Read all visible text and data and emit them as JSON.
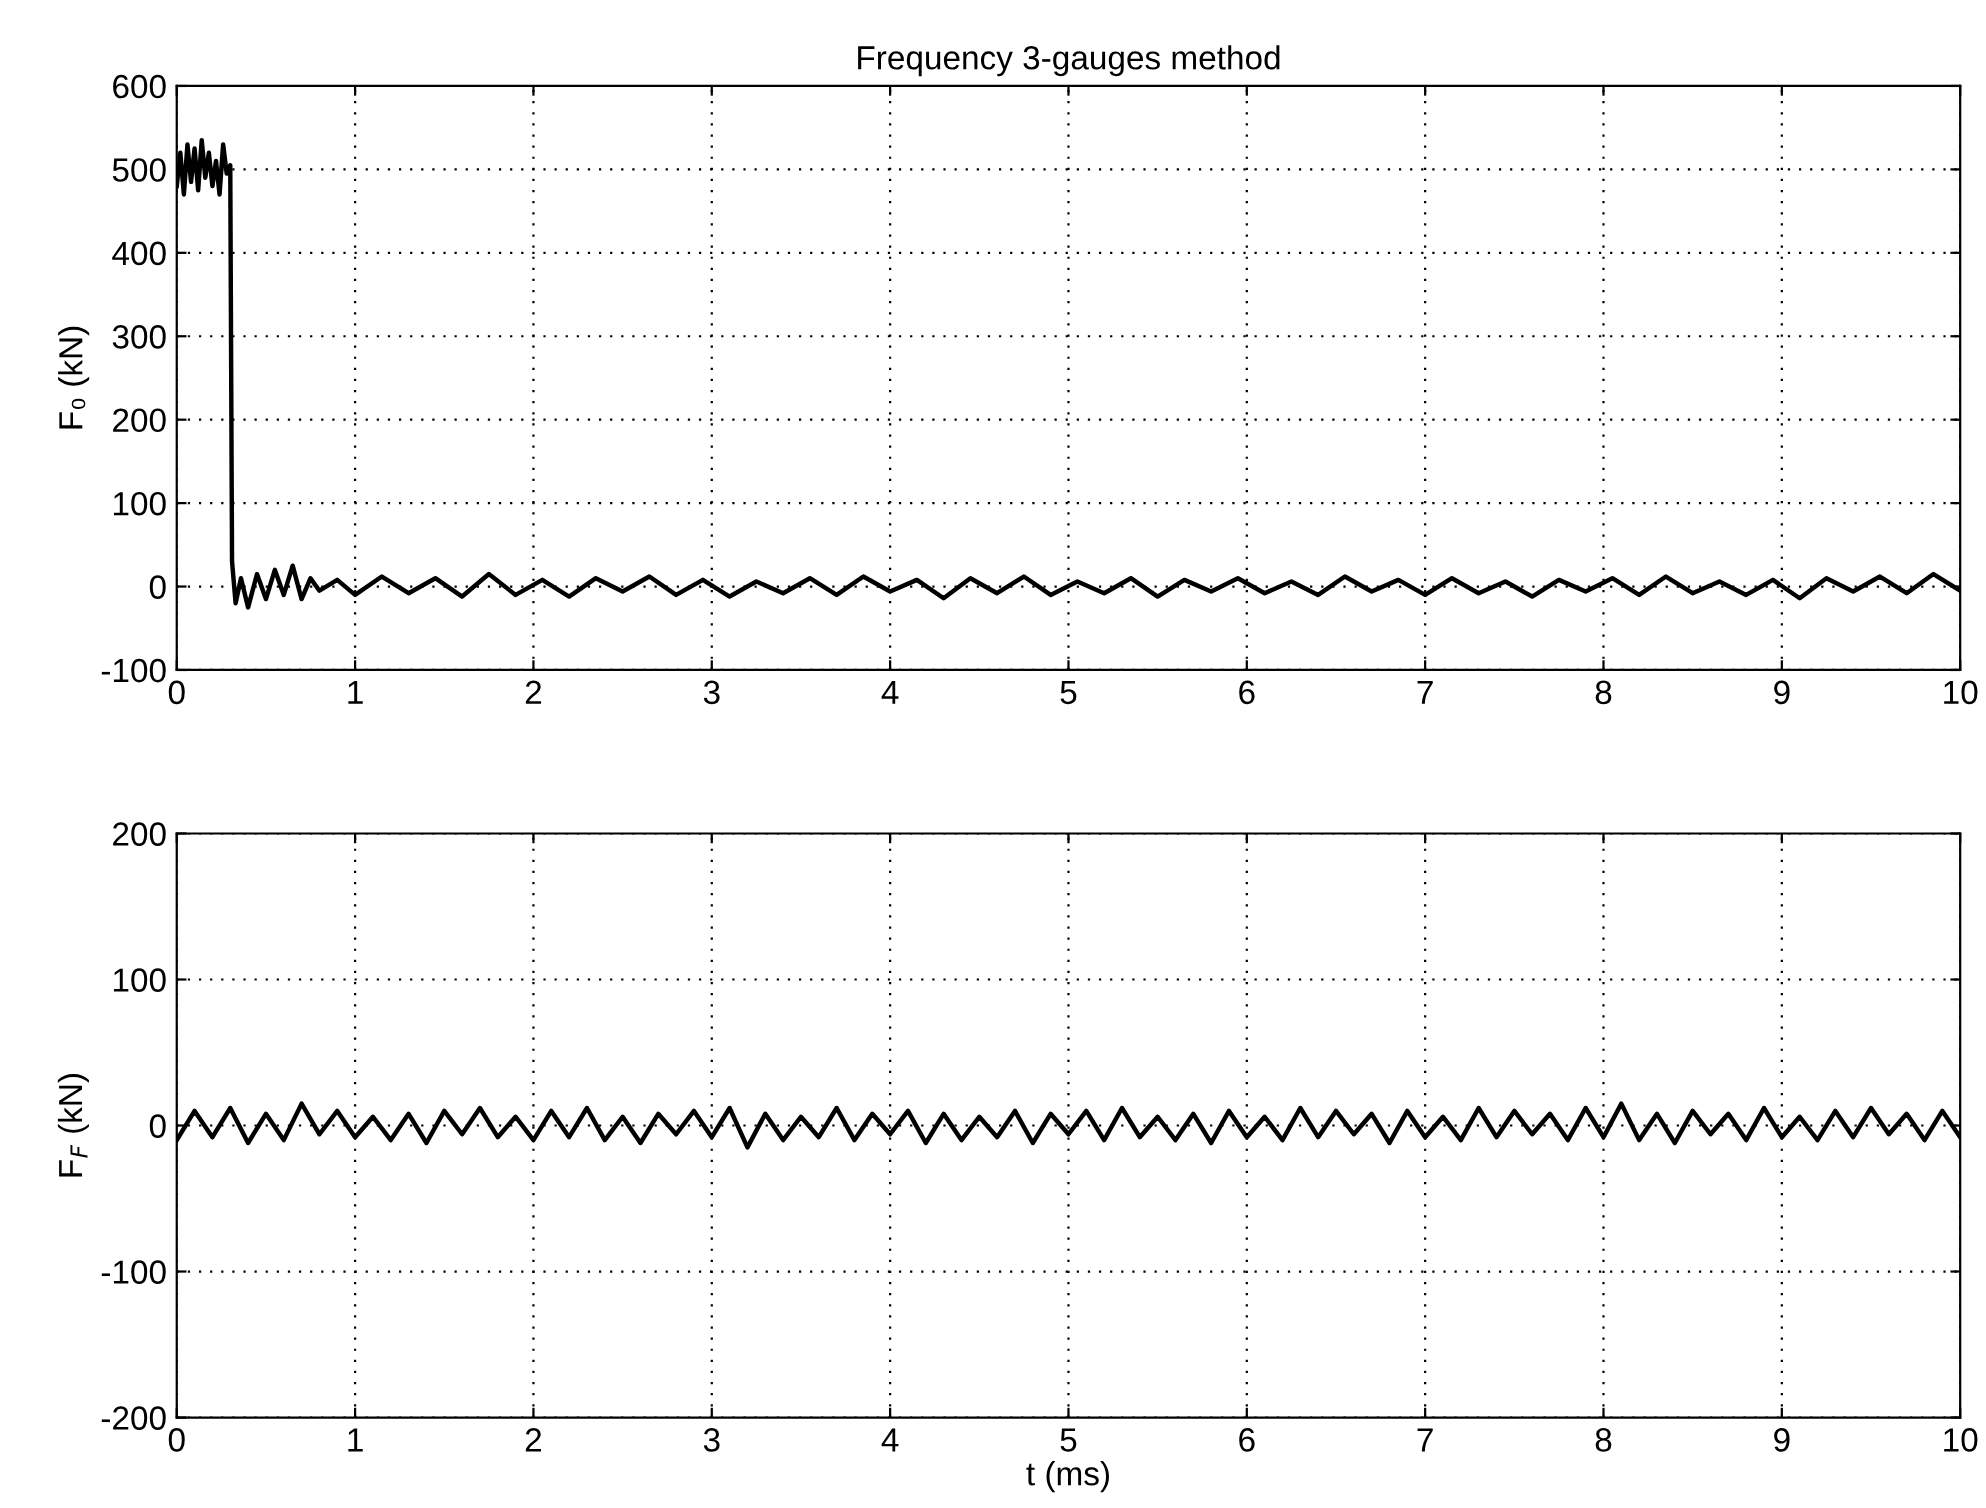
{
  "chart_data": [
    {
      "type": "line",
      "title": "Frequency 3-gauges method",
      "ylabel": "F₀ (kN)",
      "xlim": [
        0,
        10
      ],
      "ylim": [
        -100,
        600
      ],
      "xticks": [
        0,
        1,
        2,
        3,
        4,
        5,
        6,
        7,
        8,
        9,
        10
      ],
      "yticks": [
        -100,
        0,
        100,
        200,
        300,
        400,
        500,
        600
      ],
      "grid": true,
      "line_style": "solid",
      "series": [
        {
          "color": "#000000",
          "x": [
            0,
            0.02,
            0.04,
            0.06,
            0.08,
            0.1,
            0.12,
            0.14,
            0.16,
            0.18,
            0.2,
            0.22,
            0.24,
            0.26,
            0.28,
            0.3,
            0.31,
            0.33,
            0.36,
            0.4,
            0.45,
            0.5,
            0.55,
            0.6,
            0.65,
            0.7,
            0.75,
            0.8,
            0.9,
            1.0,
            1.15,
            1.3,
            1.45,
            1.6,
            1.75,
            1.9,
            2.05,
            2.2,
            2.35,
            2.5,
            2.65,
            2.8,
            2.95,
            3.1,
            3.25,
            3.4,
            3.55,
            3.7,
            3.85,
            4.0,
            4.15,
            4.3,
            4.45,
            4.6,
            4.75,
            4.9,
            5.05,
            5.2,
            5.35,
            5.5,
            5.65,
            5.8,
            5.95,
            6.1,
            6.25,
            6.4,
            6.55,
            6.7,
            6.85,
            7.0,
            7.15,
            7.3,
            7.45,
            7.6,
            7.75,
            7.9,
            8.05,
            8.2,
            8.35,
            8.5,
            8.65,
            8.8,
            8.95,
            9.1,
            9.25,
            9.4,
            9.55,
            9.7,
            9.85,
            10.0
          ],
          "values": [
            480,
            520,
            470,
            530,
            485,
            525,
            475,
            535,
            490,
            520,
            480,
            510,
            470,
            530,
            495,
            505,
            30,
            -20,
            10,
            -25,
            15,
            -15,
            20,
            -10,
            25,
            -15,
            10,
            -5,
            8,
            -10,
            12,
            -8,
            10,
            -12,
            15,
            -10,
            8,
            -12,
            10,
            -6,
            12,
            -10,
            8,
            -12,
            6,
            -8,
            10,
            -10,
            12,
            -6,
            8,
            -14,
            10,
            -8,
            12,
            -10,
            6,
            -8,
            10,
            -12,
            8,
            -6,
            10,
            -8,
            6,
            -10,
            12,
            -6,
            8,
            -10,
            10,
            -8,
            6,
            -12,
            8,
            -6,
            10,
            -10,
            12,
            -8,
            6,
            -10,
            8,
            -14,
            10,
            -6,
            12,
            -8,
            15,
            -5
          ]
        }
      ]
    },
    {
      "type": "line",
      "ylabel": "F$_{F}$ (kN)",
      "xlabel": "t (ms)",
      "xlim": [
        0,
        10
      ],
      "ylim": [
        -200,
        200
      ],
      "xticks": [
        0,
        1,
        2,
        3,
        4,
        5,
        6,
        7,
        8,
        9,
        10
      ],
      "yticks": [
        -200,
        -100,
        0,
        100,
        200
      ],
      "grid": true,
      "line_style": "solid",
      "series": [
        {
          "color": "#000000",
          "x": [
            0,
            0.1,
            0.2,
            0.3,
            0.4,
            0.5,
            0.6,
            0.7,
            0.8,
            0.9,
            1.0,
            1.1,
            1.2,
            1.3,
            1.4,
            1.5,
            1.6,
            1.7,
            1.8,
            1.9,
            2.0,
            2.1,
            2.2,
            2.3,
            2.4,
            2.5,
            2.6,
            2.7,
            2.8,
            2.9,
            3.0,
            3.1,
            3.2,
            3.3,
            3.4,
            3.5,
            3.6,
            3.7,
            3.8,
            3.9,
            4.0,
            4.1,
            4.2,
            4.3,
            4.4,
            4.5,
            4.6,
            4.7,
            4.8,
            4.9,
            5.0,
            5.1,
            5.2,
            5.3,
            5.4,
            5.5,
            5.6,
            5.7,
            5.8,
            5.9,
            6.0,
            6.1,
            6.2,
            6.3,
            6.4,
            6.5,
            6.6,
            6.7,
            6.8,
            6.9,
            7.0,
            7.1,
            7.2,
            7.3,
            7.4,
            7.5,
            7.6,
            7.7,
            7.8,
            7.9,
            8.0,
            8.1,
            8.2,
            8.3,
            8.4,
            8.5,
            8.6,
            8.7,
            8.8,
            8.9,
            9.0,
            9.1,
            9.2,
            9.3,
            9.4,
            9.5,
            9.6,
            9.7,
            9.8,
            9.9,
            10.0
          ],
          "values": [
            -10,
            10,
            -8,
            12,
            -12,
            8,
            -10,
            15,
            -6,
            10,
            -8,
            6,
            -10,
            8,
            -12,
            10,
            -6,
            12,
            -8,
            6,
            -10,
            10,
            -8,
            12,
            -10,
            6,
            -12,
            8,
            -6,
            10,
            -8,
            12,
            -15,
            8,
            -10,
            6,
            -8,
            12,
            -10,
            8,
            -6,
            10,
            -12,
            8,
            -10,
            6,
            -8,
            10,
            -12,
            8,
            -6,
            10,
            -10,
            12,
            -8,
            6,
            -10,
            8,
            -12,
            10,
            -8,
            6,
            -10,
            12,
            -8,
            10,
            -6,
            8,
            -12,
            10,
            -8,
            6,
            -10,
            12,
            -8,
            10,
            -6,
            8,
            -10,
            12,
            -8,
            15,
            -10,
            8,
            -12,
            10,
            -6,
            8,
            -10,
            12,
            -8,
            6,
            -10,
            10,
            -8,
            12,
            -6,
            8,
            -10,
            10,
            -8
          ]
        }
      ]
    }
  ]
}
